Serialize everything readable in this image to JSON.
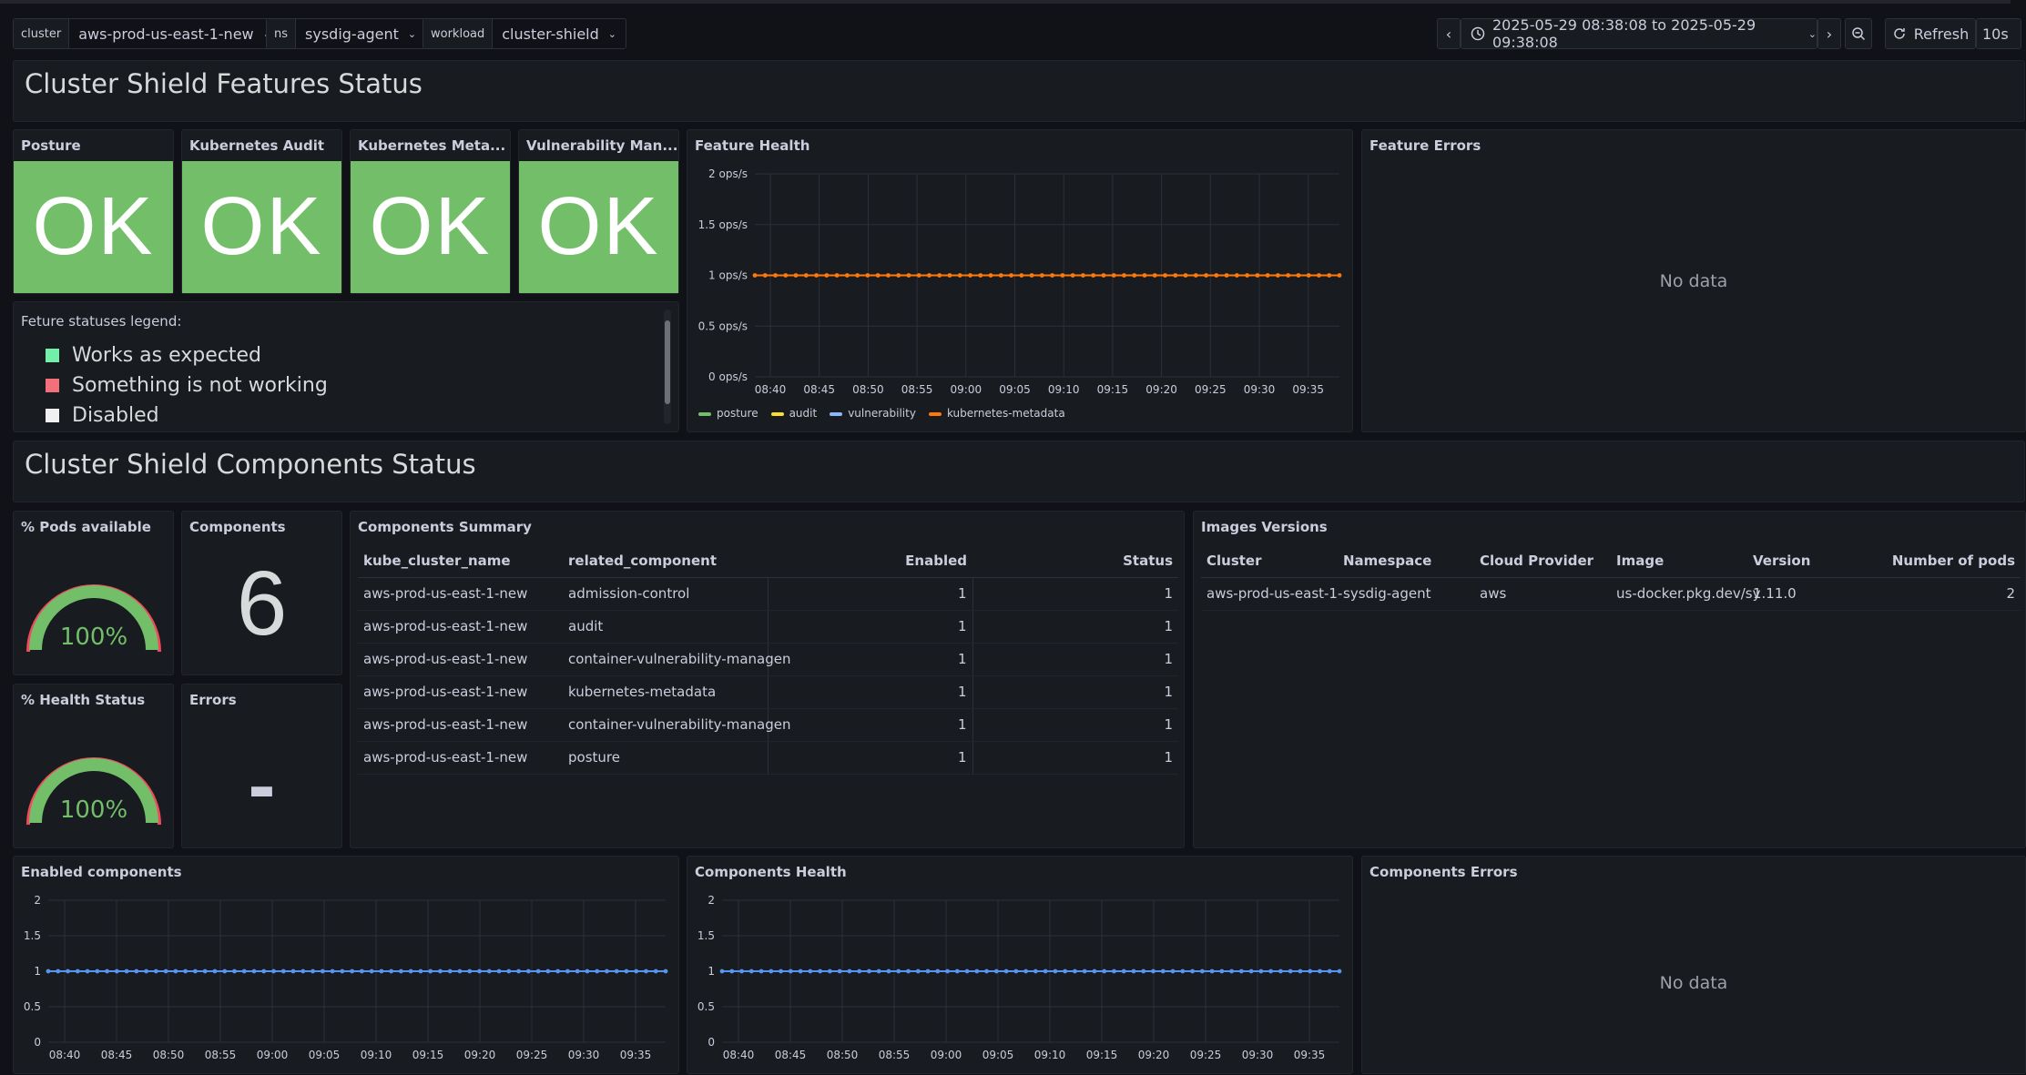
{
  "vars": [
    {
      "label": "cluster",
      "value": "aws-prod-us-east-1-new"
    },
    {
      "label": "ns",
      "value": "sysdig-agent"
    },
    {
      "label": "workload",
      "value": "cluster-shield"
    }
  ],
  "time": {
    "range": "2025-05-29 08:38:08 to 2025-05-29 09:38:08",
    "refresh_label": "Refresh",
    "refresh_interval": "10s"
  },
  "rows": {
    "features": "Cluster Shield Features Status",
    "components": "Cluster Shield Components Status"
  },
  "stat_panels": [
    {
      "title": "Posture",
      "value": "OK"
    },
    {
      "title": "Kubernetes Audit",
      "value": "OK"
    },
    {
      "title": "Kubernetes Meta...",
      "value": "OK"
    },
    {
      "title": "Vulnerability Man...",
      "value": "OK"
    }
  ],
  "legend_panel": {
    "heading": "Feture statuses legend:",
    "items": [
      {
        "label": "Works as expected",
        "color": "#73f0a8"
      },
      {
        "label": "Something is not working",
        "color": "#f2707a"
      },
      {
        "label": "Disabled",
        "color": "#f0f0f0"
      }
    ]
  },
  "feature_health": {
    "title": "Feature Health",
    "yticks": [
      "2 ops/s",
      "1.5 ops/s",
      "1 ops/s",
      "0.5 ops/s",
      "0 ops/s"
    ],
    "legend": [
      {
        "name": "posture",
        "color": "#73bf69"
      },
      {
        "name": "audit",
        "color": "#fade2a"
      },
      {
        "name": "vulnerability",
        "color": "#8ab8ff"
      },
      {
        "name": "kubernetes-metadata",
        "color": "#ff780a"
      }
    ]
  },
  "feature_errors": {
    "title": "Feature Errors",
    "nodata": "No data"
  },
  "pods_available": {
    "title": "% Pods available",
    "value": "100%",
    "fraction": 1.0
  },
  "components_count": {
    "title": "Components",
    "value": "6"
  },
  "health_status": {
    "title": "% Health Status",
    "value": "100%",
    "fraction": 1.0
  },
  "errors": {
    "title": "Errors",
    "value": "-"
  },
  "components_summary": {
    "title": "Components Summary",
    "headers": [
      "kube_cluster_name",
      "related_component",
      "Enabled",
      "Status"
    ],
    "rows": [
      [
        "aws-prod-us-east-1-new",
        "admission-control",
        "1",
        "1"
      ],
      [
        "aws-prod-us-east-1-new",
        "audit",
        "1",
        "1"
      ],
      [
        "aws-prod-us-east-1-new",
        "container-vulnerability-managen",
        "1",
        "1"
      ],
      [
        "aws-prod-us-east-1-new",
        "kubernetes-metadata",
        "1",
        "1"
      ],
      [
        "aws-prod-us-east-1-new",
        "container-vulnerability-managen",
        "1",
        "1"
      ],
      [
        "aws-prod-us-east-1-new",
        "posture",
        "1",
        "1"
      ]
    ]
  },
  "images_versions": {
    "title": "Images Versions",
    "headers": [
      "Cluster",
      "Namespace",
      "Cloud Provider",
      "Image",
      "Version",
      "Number of pods"
    ],
    "rows": [
      [
        "aws-prod-us-east-1-",
        "sysdig-agent",
        "aws",
        "us-docker.pkg.dev/sy",
        "1.11.0",
        "2"
      ]
    ]
  },
  "enabled_components": {
    "title": "Enabled components",
    "yticks": [
      "2",
      "1.5",
      "1",
      "0.5",
      "0"
    ]
  },
  "components_health": {
    "title": "Components Health",
    "yticks": [
      "2",
      "1.5",
      "1",
      "0.5",
      "0"
    ]
  },
  "components_errors": {
    "title": "Components Errors",
    "nodata": "No data"
  },
  "chart_data": [
    {
      "type": "line",
      "title": "Feature Health",
      "ylabel": "",
      "ylim": [
        0,
        2
      ],
      "x": [
        "08:40",
        "08:45",
        "08:50",
        "08:55",
        "09:00",
        "09:05",
        "09:10",
        "09:15",
        "09:20",
        "09:25",
        "09:30",
        "09:35"
      ],
      "series": [
        {
          "name": "posture",
          "values": [
            1,
            1,
            1,
            1,
            1,
            1,
            1,
            1,
            1,
            1,
            1,
            1
          ]
        },
        {
          "name": "audit",
          "values": [
            1,
            1,
            1,
            1,
            1,
            1,
            1,
            1,
            1,
            1,
            1,
            1
          ]
        },
        {
          "name": "vulnerability",
          "values": [
            1,
            1,
            1,
            1,
            1,
            1,
            1,
            1,
            1,
            1,
            1,
            1
          ]
        },
        {
          "name": "kubernetes-metadata",
          "values": [
            1,
            1,
            1,
            1,
            1,
            1,
            1,
            1,
            1,
            1,
            1,
            1
          ]
        }
      ],
      "grid": true,
      "legend": "bottom-left"
    },
    {
      "type": "line",
      "title": "Enabled components",
      "ylim": [
        0,
        2
      ],
      "x": [
        "08:40",
        "08:45",
        "08:50",
        "08:55",
        "09:00",
        "09:05",
        "09:10",
        "09:15",
        "09:20",
        "09:25",
        "09:30",
        "09:35"
      ],
      "series": [
        {
          "values": [
            1,
            1,
            1,
            1,
            1,
            1,
            1,
            1,
            1,
            1,
            1,
            1
          ]
        }
      ],
      "grid": true
    },
    {
      "type": "line",
      "title": "Components Health",
      "ylim": [
        0,
        2
      ],
      "x": [
        "08:40",
        "08:45",
        "08:50",
        "08:55",
        "09:00",
        "09:05",
        "09:10",
        "09:15",
        "09:20",
        "09:25",
        "09:30",
        "09:35"
      ],
      "series": [
        {
          "values": [
            1,
            1,
            1,
            1,
            1,
            1,
            1,
            1,
            1,
            1,
            1,
            1
          ]
        }
      ],
      "grid": true
    }
  ]
}
